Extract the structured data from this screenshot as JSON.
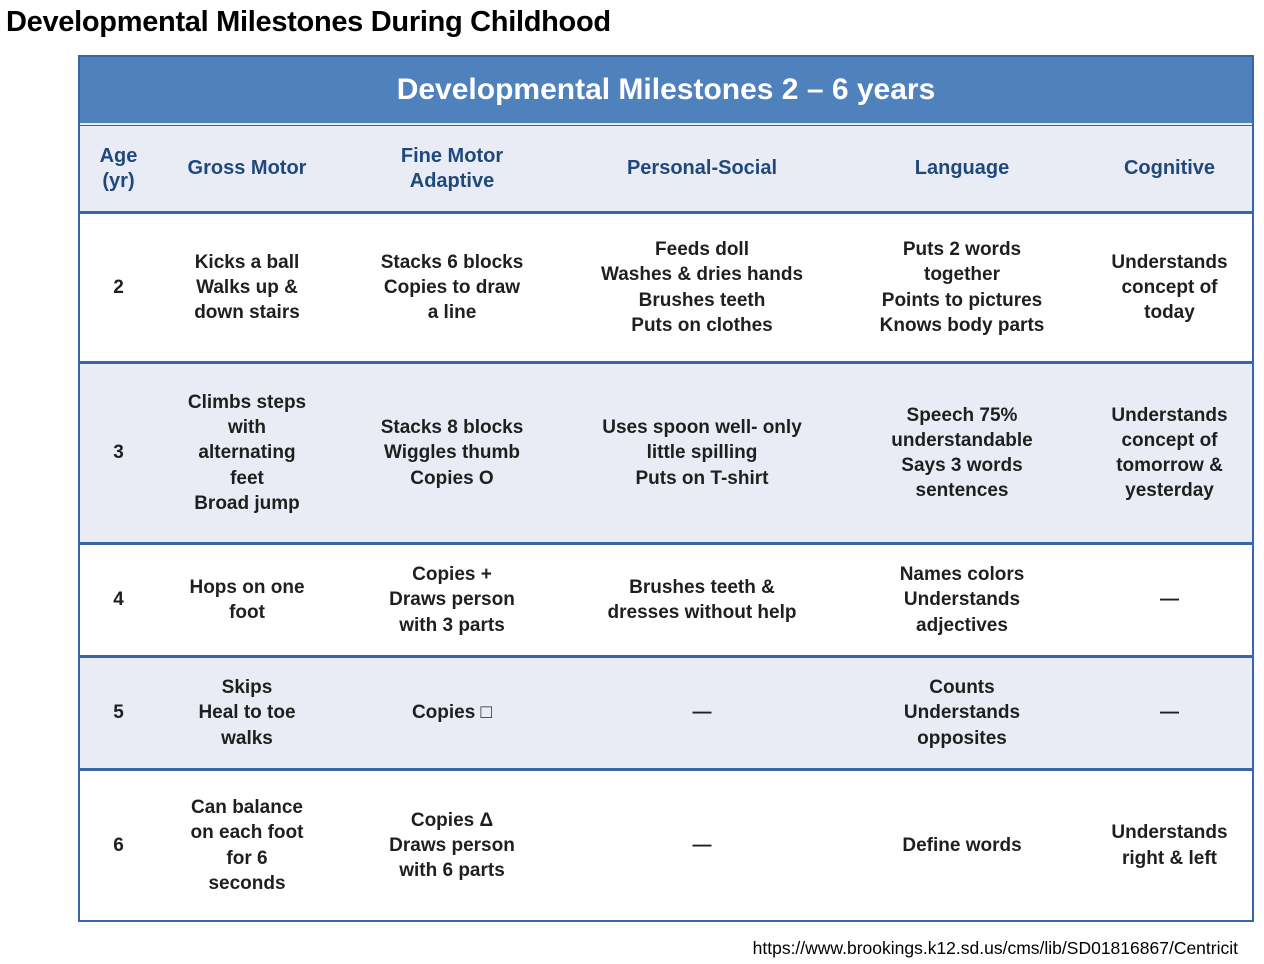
{
  "page": {
    "title": "Developmental Milestones During Childhood",
    "source_url": "https://www.brookings.k12.sd.us/cms/lib/SD01816867/Centricit"
  },
  "table": {
    "title": "Developmental Milestones 2 – 6 years",
    "columns": [
      "Age\n(yr)",
      "Gross Motor",
      "Fine Motor\nAdaptive",
      "Personal-Social",
      "Language",
      "Cognitive"
    ],
    "rows": [
      {
        "age": "2",
        "gross_motor": "Kicks a ball\nWalks up &\ndown stairs",
        "fine_motor": "Stacks 6 blocks\nCopies to draw\na line",
        "personal_social": "Feeds doll\nWashes & dries hands\nBrushes teeth\nPuts on clothes",
        "language": "Puts 2 words\ntogether\nPoints to pictures\nKnows body parts",
        "cognitive": "Understands\nconcept of\ntoday"
      },
      {
        "age": "3",
        "gross_motor": "Climbs steps\nwith\nalternating\nfeet\nBroad jump",
        "fine_motor": "Stacks 8 blocks\nWiggles thumb\nCopies O",
        "personal_social": "Uses spoon well- only\nlittle spilling\nPuts on T-shirt",
        "language": "Speech 75%\nunderstandable\nSays 3 words\nsentences",
        "cognitive": "Understands\nconcept of\ntomorrow &\nyesterday"
      },
      {
        "age": "4",
        "gross_motor": "Hops on one\nfoot",
        "fine_motor": "Copies +\nDraws person\nwith 3 parts",
        "personal_social": "Brushes teeth &\ndresses without help",
        "language": "Names colors\nUnderstands\nadjectives",
        "cognitive": "—"
      },
      {
        "age": "5",
        "gross_motor": "Skips\nHeal to toe\nwalks",
        "fine_motor": "Copies □",
        "personal_social": "—",
        "language": "Counts\nUnderstands\nopposites",
        "cognitive": "—"
      },
      {
        "age": "6",
        "gross_motor": "Can balance\non each foot\nfor 6\nseconds",
        "fine_motor": "Copies Δ\nDraws person\nwith 6 parts",
        "personal_social": "—",
        "language": "Define words",
        "cognitive": "Understands\nright & left"
      }
    ],
    "colors": {
      "header_bar_bg": "#4f81bd",
      "header_bar_text": "#ffffff",
      "column_header_text": "#1f497d",
      "row_bg": "#ffffff",
      "row_alt_bg": "#e9ecf4",
      "border": "#3867a9",
      "body_text": "#1f1f1f"
    }
  }
}
